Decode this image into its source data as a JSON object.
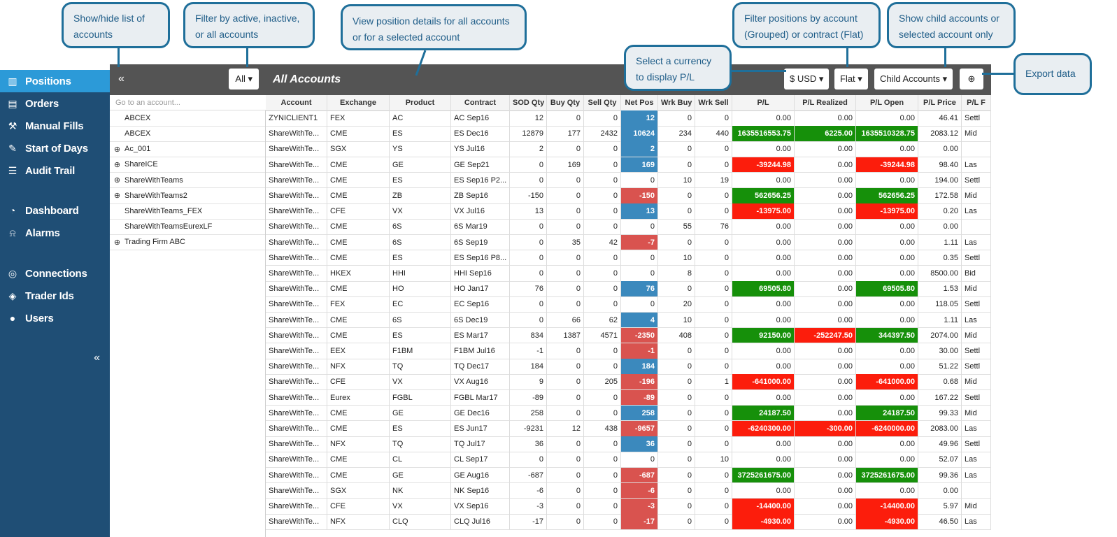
{
  "nav": {
    "items": [
      {
        "label": "Positions",
        "icon": "chart-icon",
        "glyph": "▥",
        "active": true
      },
      {
        "label": "Orders",
        "icon": "book-icon",
        "glyph": "▤"
      },
      {
        "label": "Manual Fills",
        "icon": "hammer-icon",
        "glyph": "⚒"
      },
      {
        "label": "Start of Days",
        "icon": "paperclip-icon",
        "glyph": "✎"
      },
      {
        "label": "Audit Trail",
        "icon": "list-icon",
        "glyph": "☰"
      },
      {
        "label": "Dashboard",
        "icon": "dashboard-icon",
        "glyph": "◔"
      },
      {
        "label": "Alarms",
        "icon": "bell-icon",
        "glyph": "⍾"
      },
      {
        "label": "Connections",
        "icon": "globe-icon",
        "glyph": "◎"
      },
      {
        "label": "Trader Ids",
        "icon": "tag-icon",
        "glyph": "◈"
      },
      {
        "label": "Users",
        "icon": "user-icon",
        "glyph": "●"
      }
    ],
    "collapse_glyph": "«"
  },
  "accounts": {
    "toggle_glyph": "«",
    "filter_label": "All ▾",
    "search_placeholder": "Go to an account...",
    "items": [
      {
        "name": "ABCEX",
        "expandable": false
      },
      {
        "name": "ABCEX",
        "expandable": false
      },
      {
        "name": "Ac_001",
        "expandable": true
      },
      {
        "name": "ShareICE",
        "expandable": true
      },
      {
        "name": "ShareWithTeams",
        "expandable": true
      },
      {
        "name": "ShareWithTeams2",
        "expandable": true
      },
      {
        "name": "ShareWithTeams_FEX",
        "expandable": false
      },
      {
        "name": "ShareWithTeamsEurexLF",
        "expandable": false
      },
      {
        "name": "Trading Firm ABC",
        "expandable": true
      }
    ]
  },
  "header": {
    "title": "All Accounts",
    "currency": "$ USD ▾",
    "view_mode": "Flat ▾",
    "child_filter": "Child Accounts ▾",
    "export_glyph": "⊕"
  },
  "table": {
    "columns": [
      "Account",
      "Exchange",
      "Product",
      "Contract",
      "SOD Qty",
      "Buy Qty",
      "Sell Qty",
      "Net Pos",
      "Wrk Buy",
      "Wrk Sell",
      "P/L",
      "P/L Realized",
      "P/L Open",
      "P/L Price",
      "P/L F"
    ],
    "rows": [
      {
        "account": "ZYNICLIENT1",
        "exchange": "FEX",
        "product": "AC",
        "contract": "AC Sep16",
        "sod": "12",
        "buy": "0",
        "sell": "0",
        "net": "12",
        "wbuy": "0",
        "wsell": "0",
        "pl": "0.00",
        "plr": "0.00",
        "plo": "0.00",
        "plp": "46.41",
        "plf": "Settl"
      },
      {
        "account": "ShareWithTe...",
        "exchange": "CME",
        "product": "ES",
        "contract": "ES Dec16",
        "sod": "12879",
        "buy": "177",
        "sell": "2432",
        "net": "10624",
        "wbuy": "234",
        "wsell": "440",
        "pl": "1635516553.75",
        "plr": "6225.00",
        "plo": "1635510328.75",
        "plp": "2083.12",
        "plf": "Mid"
      },
      {
        "account": "ShareWithTe...",
        "exchange": "SGX",
        "product": "YS",
        "contract": "YS Jul16",
        "sod": "2",
        "buy": "0",
        "sell": "0",
        "net": "2",
        "wbuy": "0",
        "wsell": "0",
        "pl": "0.00",
        "plr": "0.00",
        "plo": "0.00",
        "plp": "0.00",
        "plf": ""
      },
      {
        "account": "ShareWithTe...",
        "exchange": "CME",
        "product": "GE",
        "contract": "GE Sep21",
        "sod": "0",
        "buy": "169",
        "sell": "0",
        "net": "169",
        "wbuy": "0",
        "wsell": "0",
        "pl": "-39244.98",
        "plr": "0.00",
        "plo": "-39244.98",
        "plp": "98.40",
        "plf": "Las"
      },
      {
        "account": "ShareWithTe...",
        "exchange": "CME",
        "product": "ES",
        "contract": "ES Sep16 P2...",
        "sod": "0",
        "buy": "0",
        "sell": "0",
        "net": "0",
        "wbuy": "10",
        "wsell": "19",
        "pl": "0.00",
        "plr": "0.00",
        "plo": "0.00",
        "plp": "194.00",
        "plf": "Settl"
      },
      {
        "account": "ShareWithTe...",
        "exchange": "CME",
        "product": "ZB",
        "contract": "ZB Sep16",
        "sod": "-150",
        "buy": "0",
        "sell": "0",
        "net": "-150",
        "wbuy": "0",
        "wsell": "0",
        "pl": "562656.25",
        "plr": "0.00",
        "plo": "562656.25",
        "plp": "172.58",
        "plf": "Mid"
      },
      {
        "account": "ShareWithTe...",
        "exchange": "CFE",
        "product": "VX",
        "contract": "VX Jul16",
        "sod": "13",
        "buy": "0",
        "sell": "0",
        "net": "13",
        "wbuy": "0",
        "wsell": "0",
        "pl": "-13975.00",
        "plr": "0.00",
        "plo": "-13975.00",
        "plp": "0.20",
        "plf": "Las"
      },
      {
        "account": "ShareWithTe...",
        "exchange": "CME",
        "product": "6S",
        "contract": "6S Mar19",
        "sod": "0",
        "buy": "0",
        "sell": "0",
        "net": "0",
        "wbuy": "55",
        "wsell": "76",
        "pl": "0.00",
        "plr": "0.00",
        "plo": "0.00",
        "plp": "0.00",
        "plf": ""
      },
      {
        "account": "ShareWithTe...",
        "exchange": "CME",
        "product": "6S",
        "contract": "6S Sep19",
        "sod": "0",
        "buy": "35",
        "sell": "42",
        "net": "-7",
        "wbuy": "0",
        "wsell": "0",
        "pl": "0.00",
        "plr": "0.00",
        "plo": "0.00",
        "plp": "1.11",
        "plf": "Las"
      },
      {
        "account": "ShareWithTe...",
        "exchange": "CME",
        "product": "ES",
        "contract": "ES Sep16 P8...",
        "sod": "0",
        "buy": "0",
        "sell": "0",
        "net": "0",
        "wbuy": "10",
        "wsell": "0",
        "pl": "0.00",
        "plr": "0.00",
        "plo": "0.00",
        "plp": "0.35",
        "plf": "Settl"
      },
      {
        "account": "ShareWithTe...",
        "exchange": "HKEX",
        "product": "HHI",
        "contract": "HHI Sep16",
        "sod": "0",
        "buy": "0",
        "sell": "0",
        "net": "0",
        "wbuy": "8",
        "wsell": "0",
        "pl": "0.00",
        "plr": "0.00",
        "plo": "0.00",
        "plp": "8500.00",
        "plf": "Bid"
      },
      {
        "account": "ShareWithTe...",
        "exchange": "CME",
        "product": "HO",
        "contract": "HO Jan17",
        "sod": "76",
        "buy": "0",
        "sell": "0",
        "net": "76",
        "wbuy": "0",
        "wsell": "0",
        "pl": "69505.80",
        "plr": "0.00",
        "plo": "69505.80",
        "plp": "1.53",
        "plf": "Mid"
      },
      {
        "account": "ShareWithTe...",
        "exchange": "FEX",
        "product": "EC",
        "contract": "EC Sep16",
        "sod": "0",
        "buy": "0",
        "sell": "0",
        "net": "0",
        "wbuy": "20",
        "wsell": "0",
        "pl": "0.00",
        "plr": "0.00",
        "plo": "0.00",
        "plp": "118.05",
        "plf": "Settl"
      },
      {
        "account": "ShareWithTe...",
        "exchange": "CME",
        "product": "6S",
        "contract": "6S Dec19",
        "sod": "0",
        "buy": "66",
        "sell": "62",
        "net": "4",
        "wbuy": "10",
        "wsell": "0",
        "pl": "0.00",
        "plr": "0.00",
        "plo": "0.00",
        "plp": "1.11",
        "plf": "Las"
      },
      {
        "account": "ShareWithTe...",
        "exchange": "CME",
        "product": "ES",
        "contract": "ES Mar17",
        "sod": "834",
        "buy": "1387",
        "sell": "4571",
        "net": "-2350",
        "wbuy": "408",
        "wsell": "0",
        "pl": "92150.00",
        "plr": "-252247.50",
        "plo": "344397.50",
        "plp": "2074.00",
        "plf": "Mid"
      },
      {
        "account": "ShareWithTe...",
        "exchange": "EEX",
        "product": "F1BM",
        "contract": "F1BM Jul16",
        "sod": "-1",
        "buy": "0",
        "sell": "0",
        "net": "-1",
        "wbuy": "0",
        "wsell": "0",
        "pl": "0.00",
        "plr": "0.00",
        "plo": "0.00",
        "plp": "30.00",
        "plf": "Settl"
      },
      {
        "account": "ShareWithTe...",
        "exchange": "NFX",
        "product": "TQ",
        "contract": "TQ Dec17",
        "sod": "184",
        "buy": "0",
        "sell": "0",
        "net": "184",
        "wbuy": "0",
        "wsell": "0",
        "pl": "0.00",
        "plr": "0.00",
        "plo": "0.00",
        "plp": "51.22",
        "plf": "Settl"
      },
      {
        "account": "ShareWithTe...",
        "exchange": "CFE",
        "product": "VX",
        "contract": "VX Aug16",
        "sod": "9",
        "buy": "0",
        "sell": "205",
        "net": "-196",
        "wbuy": "0",
        "wsell": "1",
        "pl": "-641000.00",
        "plr": "0.00",
        "plo": "-641000.00",
        "plp": "0.68",
        "plf": "Mid"
      },
      {
        "account": "ShareWithTe...",
        "exchange": "Eurex",
        "product": "FGBL",
        "contract": "FGBL Mar17",
        "sod": "-89",
        "buy": "0",
        "sell": "0",
        "net": "-89",
        "wbuy": "0",
        "wsell": "0",
        "pl": "0.00",
        "plr": "0.00",
        "plo": "0.00",
        "plp": "167.22",
        "plf": "Settl"
      },
      {
        "account": "ShareWithTe...",
        "exchange": "CME",
        "product": "GE",
        "contract": "GE Dec16",
        "sod": "258",
        "buy": "0",
        "sell": "0",
        "net": "258",
        "wbuy": "0",
        "wsell": "0",
        "pl": "24187.50",
        "plr": "0.00",
        "plo": "24187.50",
        "plp": "99.33",
        "plf": "Mid"
      },
      {
        "account": "ShareWithTe...",
        "exchange": "CME",
        "product": "ES",
        "contract": "ES Jun17",
        "sod": "-9231",
        "buy": "12",
        "sell": "438",
        "net": "-9657",
        "wbuy": "0",
        "wsell": "0",
        "pl": "-6240300.00",
        "plr": "-300.00",
        "plo": "-6240000.00",
        "plp": "2083.00",
        "plf": "Las"
      },
      {
        "account": "ShareWithTe...",
        "exchange": "NFX",
        "product": "TQ",
        "contract": "TQ Jul17",
        "sod": "36",
        "buy": "0",
        "sell": "0",
        "net": "36",
        "wbuy": "0",
        "wsell": "0",
        "pl": "0.00",
        "plr": "0.00",
        "plo": "0.00",
        "plp": "49.96",
        "plf": "Settl"
      },
      {
        "account": "ShareWithTe...",
        "exchange": "CME",
        "product": "CL",
        "contract": "CL Sep17",
        "sod": "0",
        "buy": "0",
        "sell": "0",
        "net": "0",
        "wbuy": "0",
        "wsell": "10",
        "pl": "0.00",
        "plr": "0.00",
        "plo": "0.00",
        "plp": "52.07",
        "plf": "Las"
      },
      {
        "account": "ShareWithTe...",
        "exchange": "CME",
        "product": "GE",
        "contract": "GE Aug16",
        "sod": "-687",
        "buy": "0",
        "sell": "0",
        "net": "-687",
        "wbuy": "0",
        "wsell": "0",
        "pl": "3725261675.00",
        "plr": "0.00",
        "plo": "3725261675.00",
        "plp": "99.36",
        "plf": "Las"
      },
      {
        "account": "ShareWithTe...",
        "exchange": "SGX",
        "product": "NK",
        "contract": "NK Sep16",
        "sod": "-6",
        "buy": "0",
        "sell": "0",
        "net": "-6",
        "wbuy": "0",
        "wsell": "0",
        "pl": "0.00",
        "plr": "0.00",
        "plo": "0.00",
        "plp": "0.00",
        "plf": ""
      },
      {
        "account": "ShareWithTe...",
        "exchange": "CFE",
        "product": "VX",
        "contract": "VX Sep16",
        "sod": "-3",
        "buy": "0",
        "sell": "0",
        "net": "-3",
        "wbuy": "0",
        "wsell": "0",
        "pl": "-14400.00",
        "plr": "0.00",
        "plo": "-14400.00",
        "plp": "5.97",
        "plf": "Mid"
      },
      {
        "account": "ShareWithTe...",
        "exchange": "NFX",
        "product": "CLQ",
        "contract": "CLQ Jul16",
        "sod": "-17",
        "buy": "0",
        "sell": "0",
        "net": "-17",
        "wbuy": "0",
        "wsell": "0",
        "pl": "-4930.00",
        "plr": "0.00",
        "plo": "-4930.00",
        "plp": "46.50",
        "plf": "Las"
      }
    ]
  },
  "colors": {
    "positive": "#16900a",
    "negative": "#fc1d0c",
    "net_long": "#3b89bd",
    "net_short": "#d9534f",
    "nav_bg": "#1f4e75",
    "nav_active": "#2c9ad8"
  },
  "callouts": {
    "show_hide": "Show/hide list of accounts",
    "filter_active": "Filter by active, inactive, or all accounts",
    "view_details": "View position details for all accounts or for a selected account",
    "filter_positions": "Filter positions by account (Grouped) or contract (Flat)",
    "child_accounts": "Show child accounts or selected account only",
    "currency": "Select a currency to display P/L",
    "export": "Export data"
  }
}
